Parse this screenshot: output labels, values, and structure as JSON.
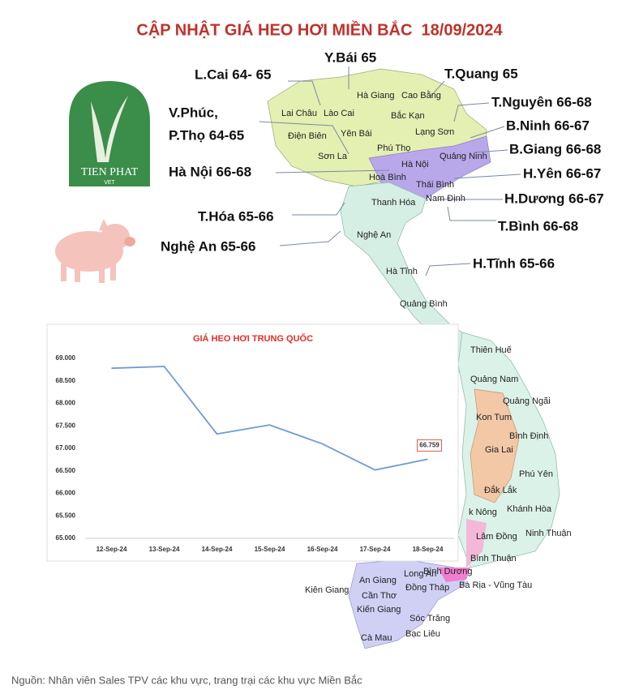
{
  "title": "CẬP NHẬT GIÁ HEO HƠI MIỀN BẮC  18/09/2024",
  "logo": {
    "name": "TIEN PHAT",
    "sub": "VET"
  },
  "prices": [
    "Y.Bái 65",
    "L.Cai 64- 65",
    "T.Quang 65",
    "T.Nguyên 66-68",
    "V.Phúc,",
    "P.Thọ 64-65",
    "B.Ninh 66-67",
    "B.Giang 66-68",
    "Hà Nội 66-68",
    "H.Yên 66-67",
    "H.Dương 66-67",
    "T.Hóa 65-66",
    "T.Bình 66-68",
    "Nghệ An 65-66",
    "H.Tĩnh 65-66"
  ],
  "map_labels": [
    "Hà Giang",
    "Cao Bằng",
    "Lai Châu",
    "Lào Cai",
    "Bắc Kạn",
    "Điện Biên",
    "Yên Bái",
    "Lạng Sơn",
    "Phú Thọ",
    "Quảng Ninh",
    "Sơn La",
    "Hà Nội",
    "Hoà Bình",
    "Thái Bình",
    "Nam Định",
    "Thanh Hóa",
    "Nghệ An",
    "Hà Tĩnh",
    "Quảng Bình",
    "Thiên Huế",
    "Quảng Nam",
    "Quảng Ngãi",
    "Kon Tum",
    "Bình Định",
    "Gia Lai",
    "Phú Yên",
    "Đắk Lắk",
    "k Nông",
    "Khánh Hòa",
    "Ninh Thuận",
    "Lâm Đồng",
    "Bình Thuận",
    "Bình Dương",
    "Long An",
    "Bà Rịa - Vũng Tàu",
    "Kiên Giang",
    "An Giang",
    "Cần Thơ",
    "Đồng Tháp",
    "Kiến Giang",
    "Sóc Trăng",
    "Cà Mau",
    "Bạc Liêu"
  ],
  "chart_data": {
    "type": "line",
    "title": "GIÁ HEO HƠI TRUNG QUỐC",
    "categories": [
      "12-Sep-24",
      "13-Sep-24",
      "14-Sep-24",
      "15-Sep-24",
      "16-Sep-24",
      "17-Sep-24",
      "18-Sep-24"
    ],
    "values": [
      68.78,
      68.82,
      67.32,
      67.52,
      67.1,
      66.52,
      66.759
    ],
    "value_labels": [
      null,
      null,
      null,
      null,
      null,
      null,
      "66.759"
    ],
    "color": "#6f9bd1",
    "ylim": [
      65,
      69
    ],
    "yticks": [
      {
        "value": 65,
        "label": "65.000"
      },
      {
        "value": 65.5,
        "label": "65.500"
      },
      {
        "value": 66,
        "label": "66.000"
      },
      {
        "value": 66.5,
        "label": "66.500"
      },
      {
        "value": 67,
        "label": "67.000"
      },
      {
        "value": 67.5,
        "label": "67.500"
      },
      {
        "value": 68,
        "label": "68.000"
      },
      {
        "value": 68.5,
        "label": "68.500"
      },
      {
        "value": 69,
        "label": "69.000"
      }
    ],
    "grid": false
  },
  "source": "Nguồn: Nhân viên Sales TPV các khu vực, trang trại các khu vực Miền Bắc"
}
